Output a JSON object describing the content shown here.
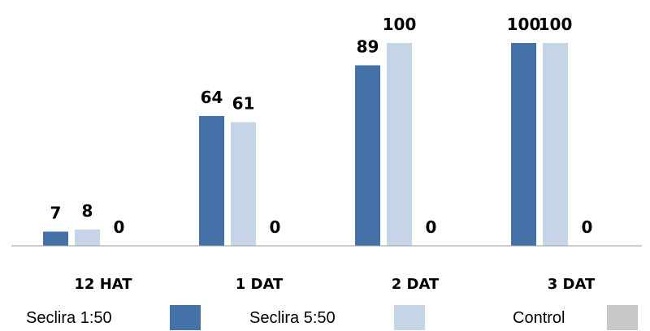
{
  "chart_data": {
    "type": "bar",
    "title": "",
    "xlabel": "",
    "ylabel": "",
    "ylim": [
      0,
      100
    ],
    "grid": false,
    "legend_position": "bottom",
    "categories": [
      "12 HAT",
      "1 DAT",
      "2 DAT",
      "3 DAT"
    ],
    "series": [
      {
        "name": "Seclira 1:50",
        "values": [
          7,
          64,
          89,
          100
        ],
        "color": "#4472a8"
      },
      {
        "name": "Seclira 5:50",
        "values": [
          8,
          61,
          100,
          100
        ],
        "color": "#c5d5e7"
      },
      {
        "name": "Control",
        "values": [
          0,
          0,
          0,
          0
        ],
        "color": "#c8c8c8"
      }
    ]
  }
}
